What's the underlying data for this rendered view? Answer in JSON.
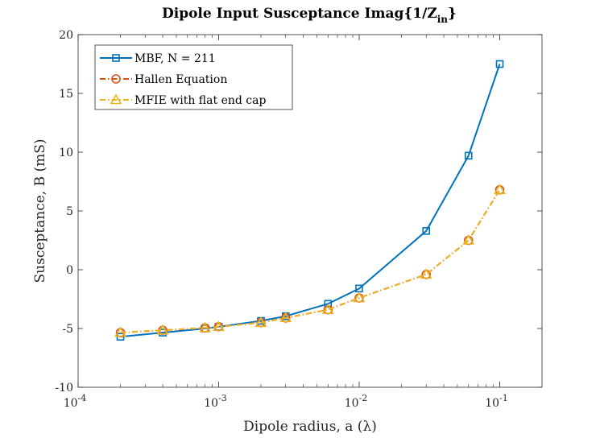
{
  "chart_data": {
    "type": "line",
    "title": "Dipole Input Susceptance Imag{1/Z",
    "title_subscript": "in",
    "title_suffix": "}",
    "xlabel": "Dipole radius, a (λ)",
    "ylabel": "Susceptance, B (mS)",
    "xscale": "log",
    "xlim": [
      0.0001,
      0.2
    ],
    "ylim": [
      -10,
      20
    ],
    "x_ticks": [
      {
        "value": 0.0001,
        "base": "10",
        "exp": "-4"
      },
      {
        "value": 0.001,
        "base": "10",
        "exp": "-3"
      },
      {
        "value": 0.01,
        "base": "10",
        "exp": "-2"
      },
      {
        "value": 0.1,
        "base": "10",
        "exp": "-1"
      }
    ],
    "y_ticks": [
      -10,
      -5,
      0,
      5,
      10,
      15,
      20
    ],
    "grid": false,
    "legend_position": "top-left",
    "x": [
      0.0002,
      0.0004,
      0.0008,
      0.001,
      0.002,
      0.003,
      0.006,
      0.01,
      0.03,
      0.06,
      0.1
    ],
    "series": [
      {
        "name": "MBF, N = 211",
        "color": "#0072BD",
        "marker": "square",
        "line": "solid",
        "values": [
          -5.7,
          -5.35,
          -5.0,
          -4.85,
          -4.35,
          -3.95,
          -2.9,
          -1.6,
          3.3,
          9.7,
          17.5
        ]
      },
      {
        "name": "Hallen Equation",
        "color": "#D95319",
        "marker": "circle",
        "line": "dashdot",
        "values": [
          -5.35,
          -5.15,
          -4.95,
          -4.85,
          -4.5,
          -4.1,
          -3.4,
          -2.4,
          -0.4,
          2.5,
          6.8
        ]
      },
      {
        "name": "MFIE with flat end cap",
        "color": "#EDB120",
        "marker": "triangle",
        "line": "dashdot",
        "values": [
          -5.35,
          -5.15,
          -4.95,
          -4.85,
          -4.5,
          -4.1,
          -3.4,
          -2.4,
          -0.4,
          2.5,
          6.8
        ]
      }
    ]
  }
}
